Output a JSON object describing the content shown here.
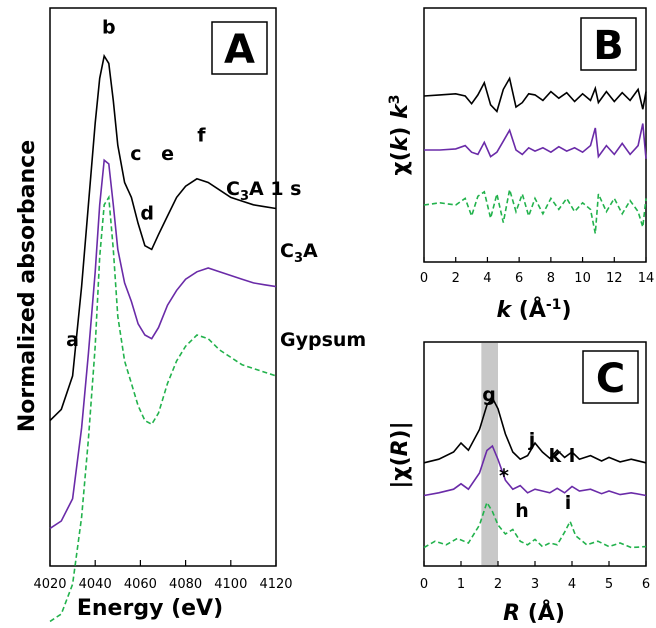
{
  "colors": {
    "black": "#000000",
    "purple": "#6a2ba8",
    "green": "#22b24c",
    "shade": "#c8c8c8"
  },
  "chart_data": [
    {
      "panel": "A",
      "type": "line",
      "xlabel": "Energy (eV)",
      "ylabel": "Normalized absorbance",
      "xlim": [
        4020,
        4120
      ],
      "xticks": [
        "4020",
        "4040",
        "4060",
        "4080",
        "4100",
        "4120"
      ],
      "series": [
        {
          "name": "C3A 1 s",
          "style": "solid",
          "color": "#000000",
          "x": [
            4020,
            4025,
            4030,
            4034,
            4037,
            4040,
            4042,
            4044,
            4046,
            4048,
            4050,
            4053,
            4056,
            4059,
            4062,
            4065,
            4068,
            4072,
            4076,
            4080,
            4085,
            4090,
            4095,
            4100,
            4105,
            4110,
            4115,
            4120
          ],
          "y": [
            0.02,
            0.05,
            0.14,
            0.38,
            0.6,
            0.82,
            0.94,
            1.0,
            0.98,
            0.88,
            0.76,
            0.66,
            0.62,
            0.55,
            0.49,
            0.48,
            0.52,
            0.57,
            0.62,
            0.65,
            0.67,
            0.66,
            0.64,
            0.62,
            0.61,
            0.6,
            0.595,
            0.59
          ]
        },
        {
          "name": "C3A",
          "style": "solid",
          "color": "#6a2ba8",
          "x": [
            4020,
            4025,
            4030,
            4034,
            4037,
            4040,
            4042,
            4044,
            4046,
            4048,
            4050,
            4053,
            4056,
            4059,
            4062,
            4065,
            4068,
            4072,
            4076,
            4080,
            4085,
            4090,
            4095,
            4100,
            4105,
            4110,
            4115,
            4120
          ],
          "y": [
            -0.27,
            -0.25,
            -0.19,
            0.0,
            0.2,
            0.42,
            0.6,
            0.72,
            0.71,
            0.6,
            0.48,
            0.39,
            0.34,
            0.28,
            0.25,
            0.24,
            0.27,
            0.33,
            0.37,
            0.4,
            0.42,
            0.43,
            0.42,
            0.41,
            0.4,
            0.39,
            0.385,
            0.38
          ]
        },
        {
          "name": "Gypsum",
          "style": "dashed",
          "color": "#22b24c",
          "x": [
            4020,
            4025,
            4030,
            4034,
            4037,
            4040,
            4042,
            4044,
            4046,
            4048,
            4050,
            4053,
            4056,
            4059,
            4062,
            4065,
            4068,
            4072,
            4076,
            4080,
            4085,
            4090,
            4095,
            4100,
            4105,
            4110,
            4115,
            4120
          ],
          "y": [
            -0.52,
            -0.5,
            -0.42,
            -0.24,
            -0.03,
            0.22,
            0.46,
            0.6,
            0.62,
            0.48,
            0.3,
            0.18,
            0.12,
            0.06,
            0.02,
            0.01,
            0.04,
            0.12,
            0.18,
            0.22,
            0.25,
            0.24,
            0.21,
            0.19,
            0.17,
            0.16,
            0.15,
            0.14
          ]
        }
      ],
      "peak_labels": [
        {
          "text": "a",
          "x": 4030,
          "y": 0.22
        },
        {
          "text": "b",
          "x": 4046,
          "y": 1.06
        },
        {
          "text": "c",
          "x": 4058,
          "y": 0.72
        },
        {
          "text": "d",
          "x": 4063,
          "y": 0.56
        },
        {
          "text": "e",
          "x": 4072,
          "y": 0.72
        },
        {
          "text": "f",
          "x": 4087,
          "y": 0.77
        }
      ],
      "series_labels": [
        {
          "main": "C",
          "sub": "3",
          "rest": "A 1 s"
        },
        {
          "main": "C",
          "sub": "3",
          "rest": "A"
        },
        {
          "main": "Gypsum",
          "sub": "",
          "rest": ""
        }
      ]
    },
    {
      "panel": "B",
      "type": "line",
      "xlabel": "k (Å-1)",
      "ylabel": "χ(k) k3",
      "xlim": [
        0,
        14
      ],
      "xticks": [
        "0",
        "2",
        "4",
        "6",
        "8",
        "10",
        "12",
        "14"
      ],
      "series": [
        {
          "style": "solid",
          "color": "#000000",
          "x": [
            0,
            1,
            2,
            2.6,
            3.0,
            3.4,
            3.8,
            4.2,
            4.6,
            5.0,
            5.4,
            5.8,
            6.2,
            6.6,
            7.0,
            7.5,
            8.0,
            8.5,
            9.0,
            9.5,
            10.0,
            10.5,
            10.8,
            11.0,
            11.5,
            12.0,
            12.5,
            13.0,
            13.5,
            13.8,
            14
          ],
          "y": [
            0,
            0.05,
            0.1,
            0.0,
            -0.35,
            0.05,
            0.6,
            -0.4,
            -0.7,
            0.3,
            0.8,
            -0.5,
            -0.3,
            0.1,
            0.05,
            -0.2,
            0.2,
            -0.1,
            0.15,
            -0.25,
            0.1,
            -0.2,
            0.35,
            -0.3,
            0.2,
            -0.25,
            0.15,
            -0.2,
            0.3,
            -0.6,
            0.2
          ]
        },
        {
          "style": "solid",
          "color": "#6a2ba8",
          "x": [
            0,
            1,
            2,
            2.6,
            3.0,
            3.4,
            3.8,
            4.2,
            4.6,
            5.0,
            5.4,
            5.8,
            6.2,
            6.6,
            7.0,
            7.5,
            8.0,
            8.5,
            9.0,
            9.5,
            10.0,
            10.5,
            10.8,
            11.0,
            11.5,
            12.0,
            12.5,
            13.0,
            13.5,
            13.8,
            14
          ],
          "y": [
            0,
            0.0,
            0.05,
            0.2,
            -0.1,
            -0.2,
            0.35,
            -0.3,
            -0.1,
            0.4,
            0.9,
            0.0,
            -0.2,
            0.1,
            -0.05,
            0.1,
            -0.1,
            0.15,
            -0.05,
            0.1,
            -0.1,
            0.2,
            1.0,
            -0.3,
            0.2,
            -0.2,
            0.3,
            -0.2,
            0.2,
            1.2,
            -0.4
          ]
        },
        {
          "style": "dashed",
          "color": "#22b24c",
          "x": [
            0,
            1,
            2,
            2.6,
            3.0,
            3.4,
            3.8,
            4.2,
            4.6,
            5.0,
            5.4,
            5.8,
            6.2,
            6.6,
            7.0,
            7.5,
            8.0,
            8.5,
            9.0,
            9.5,
            10.0,
            10.5,
            10.8,
            11.0,
            11.5,
            12.0,
            12.5,
            13.0,
            13.5,
            13.8,
            14
          ],
          "y": [
            0,
            0.1,
            0.0,
            0.3,
            -0.5,
            0.4,
            0.6,
            -0.6,
            0.5,
            -0.8,
            0.7,
            -0.3,
            0.5,
            -0.5,
            0.3,
            -0.4,
            0.3,
            -0.2,
            0.3,
            -0.3,
            0.1,
            -0.2,
            -1.3,
            0.5,
            -0.3,
            0.3,
            -0.4,
            0.2,
            -0.3,
            -1.0,
            0.3
          ]
        }
      ]
    },
    {
      "panel": "C",
      "type": "line",
      "xlabel": "R (Å)",
      "ylabel": "|χ(R)|",
      "xlim": [
        0,
        6
      ],
      "xticks": [
        "0",
        "1",
        "2",
        "3",
        "4",
        "5",
        "6"
      ],
      "shaded_band": [
        1.55,
        2.0
      ],
      "series": [
        {
          "style": "solid",
          "color": "#000000",
          "x": [
            0,
            0.4,
            0.8,
            1.0,
            1.2,
            1.5,
            1.7,
            1.85,
            2.0,
            2.2,
            2.4,
            2.6,
            2.8,
            3.0,
            3.2,
            3.4,
            3.6,
            3.8,
            4.0,
            4.2,
            4.5,
            4.8,
            5.0,
            5.3,
            5.6,
            6
          ],
          "y": [
            0.08,
            0.12,
            0.2,
            0.3,
            0.22,
            0.45,
            0.72,
            0.8,
            0.68,
            0.4,
            0.2,
            0.12,
            0.16,
            0.3,
            0.2,
            0.13,
            0.22,
            0.14,
            0.2,
            0.12,
            0.16,
            0.1,
            0.14,
            0.09,
            0.12,
            0.08
          ]
        },
        {
          "style": "solid",
          "color": "#6a2ba8",
          "x": [
            0,
            0.4,
            0.8,
            1.0,
            1.2,
            1.5,
            1.7,
            1.85,
            2.0,
            2.2,
            2.4,
            2.6,
            2.8,
            3.0,
            3.2,
            3.4,
            3.6,
            3.8,
            4.0,
            4.2,
            4.5,
            4.8,
            5.0,
            5.3,
            5.6,
            6
          ],
          "y": [
            0.05,
            0.08,
            0.12,
            0.18,
            0.12,
            0.3,
            0.55,
            0.6,
            0.45,
            0.22,
            0.12,
            0.16,
            0.08,
            0.12,
            0.1,
            0.08,
            0.13,
            0.08,
            0.15,
            0.1,
            0.12,
            0.07,
            0.1,
            0.06,
            0.08,
            0.05
          ]
        },
        {
          "style": "dashed",
          "color": "#22b24c",
          "x": [
            0,
            0.3,
            0.6,
            0.9,
            1.2,
            1.5,
            1.7,
            1.85,
            2.0,
            2.2,
            2.4,
            2.6,
            2.8,
            3.0,
            3.2,
            3.4,
            3.6,
            3.8,
            3.95,
            4.1,
            4.4,
            4.7,
            5.0,
            5.3,
            5.6,
            6
          ],
          "y": [
            0.05,
            0.12,
            0.08,
            0.15,
            0.1,
            0.3,
            0.55,
            0.45,
            0.3,
            0.2,
            0.25,
            0.12,
            0.08,
            0.14,
            0.06,
            0.1,
            0.08,
            0.22,
            0.34,
            0.18,
            0.08,
            0.12,
            0.06,
            0.1,
            0.05,
            0.06
          ]
        }
      ],
      "peak_labels": [
        "g",
        "j",
        "k",
        "l",
        "*",
        "h",
        "i"
      ]
    }
  ],
  "panel_letters": {
    "a": "A",
    "b": "B",
    "c": "C"
  },
  "axis_titles": {
    "a_x": "Energy (eV)",
    "a_y": "Normalized absorbance",
    "b_x_main": "k",
    "b_x_unit": " (Å",
    "b_x_sup": "-1",
    "b_x_close": ")",
    "b_y_chi": "χ(",
    "b_y_k": "k",
    "b_y_close": ") ",
    "b_y_k2": "k",
    "b_y_sup": "3",
    "c_x_main": "R",
    "c_x_unit": " (Å)",
    "c_y_pre": "|χ(",
    "c_y_r": "R",
    "c_y_post": ")|"
  }
}
